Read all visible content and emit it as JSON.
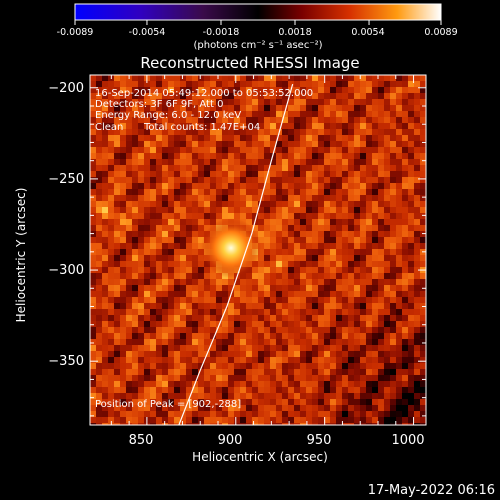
{
  "colorbar": {
    "min": -0.0089,
    "max": 0.0089,
    "ticks": [
      "-0.0089",
      "-0.0054",
      "-0.0018",
      "0.0018",
      "0.0054",
      "0.0089"
    ],
    "unit_label": "(photons cm⁻² s⁻¹ asec⁻²)",
    "colormap": [
      "#0000ff",
      "#3a00b4",
      "#4a0a55",
      "#000000",
      "#5a0000",
      "#c02000",
      "#ff7000",
      "#ffd040",
      "#ffffff"
    ]
  },
  "chart_data": {
    "type": "heatmap",
    "title": "Reconstructed RHESSI Image",
    "xlabel": "Heliocentric X (arcsec)",
    "ylabel": "Heliocentric Y (arcsec)",
    "xlim": [
      818,
      1007
    ],
    "ylim": [
      -385,
      -193
    ],
    "x_ticks": [
      850,
      900,
      950,
      1000
    ],
    "x_tick_labels": [
      "850",
      "900",
      "950",
      "1000"
    ],
    "y_ticks": [
      -200,
      -250,
      -300,
      -350
    ],
    "y_tick_labels": [
      "−200",
      "−250",
      "−300",
      "−350"
    ],
    "peak": {
      "x": 902,
      "y": -288
    },
    "annotations": [
      "16-Sep-2014 05:49:12.000 to 05:53:52.000",
      "Detectors: 3F 6F 9F, Att 0",
      "Energy Range: 6.0 - 12.0 keV",
      "Clean",
      "Total counts: 1.47E+04"
    ],
    "peak_label": "Position of Peak = [902,-288]",
    "limb_curve": [
      [
        868,
        -385
      ],
      [
        880,
        -355
      ],
      [
        895,
        -320
      ],
      [
        909,
        -280
      ],
      [
        920,
        -240
      ],
      [
        932,
        -198
      ]
    ]
  },
  "footer": {
    "timestamp": "17-May-2022 06:16"
  }
}
